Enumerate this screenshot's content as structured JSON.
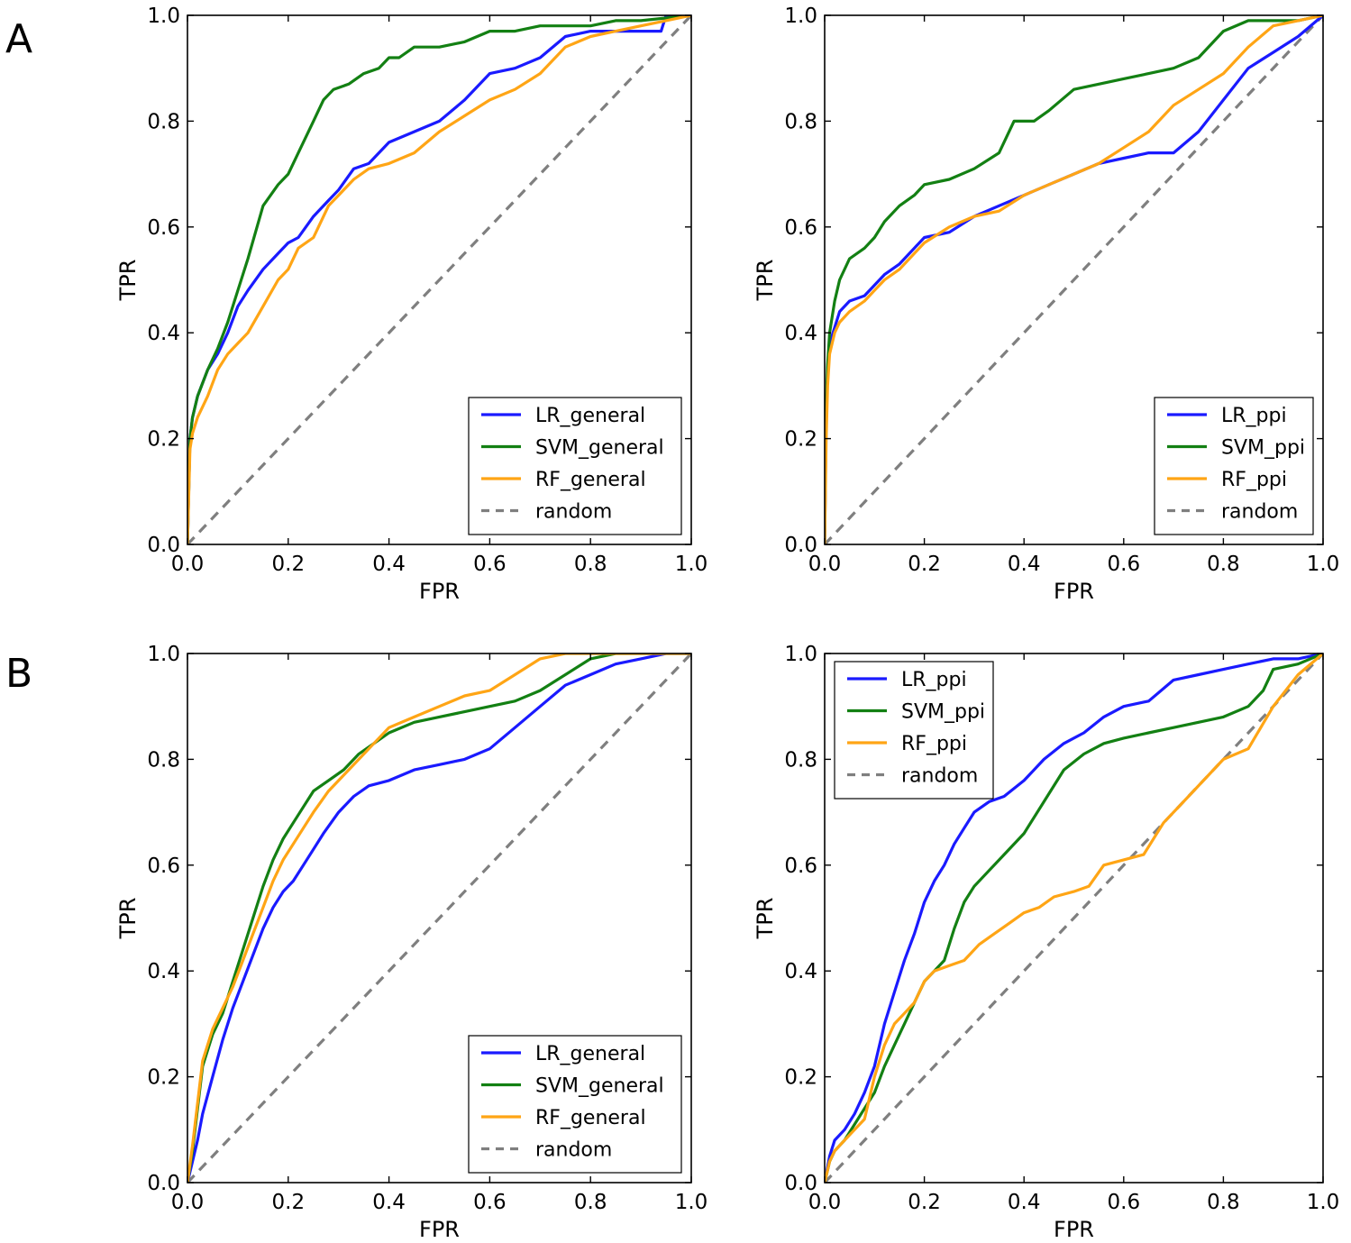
{
  "panel_labels": [
    "A",
    "B"
  ],
  "colors": {
    "lr": "#1a1aff",
    "svm": "#138013",
    "rf": "#ffa515",
    "random": "#7f7f7f",
    "frame": "#000000"
  },
  "chart_data": [
    {
      "type": "line",
      "panel": "A",
      "position": "top-left",
      "title": "",
      "xlabel": "FPR",
      "ylabel": "TPR",
      "xlim": [
        0,
        1
      ],
      "ylim": [
        0,
        1
      ],
      "xticks": [
        "0.0",
        "0.2",
        "0.4",
        "0.6",
        "0.8",
        "1.0"
      ],
      "yticks": [
        "0.0",
        "0.2",
        "0.4",
        "0.6",
        "0.8",
        "1.0"
      ],
      "legend_loc": "lower-right",
      "series": [
        {
          "name": "LR_general",
          "key": "lr",
          "x": [
            0,
            0.005,
            0.01,
            0.02,
            0.04,
            0.06,
            0.08,
            0.1,
            0.12,
            0.15,
            0.18,
            0.2,
            0.22,
            0.25,
            0.28,
            0.3,
            0.33,
            0.36,
            0.4,
            0.45,
            0.5,
            0.55,
            0.6,
            0.65,
            0.7,
            0.75,
            0.8,
            0.85,
            0.9,
            0.94,
            0.95,
            1.0
          ],
          "y": [
            0,
            0.2,
            0.24,
            0.28,
            0.33,
            0.36,
            0.4,
            0.45,
            0.48,
            0.52,
            0.55,
            0.57,
            0.58,
            0.62,
            0.65,
            0.67,
            0.71,
            0.72,
            0.76,
            0.78,
            0.8,
            0.84,
            0.89,
            0.9,
            0.92,
            0.96,
            0.97,
            0.97,
            0.97,
            0.97,
            1.0,
            1.0
          ]
        },
        {
          "name": "SVM_general",
          "key": "svm",
          "x": [
            0,
            0.005,
            0.01,
            0.02,
            0.04,
            0.06,
            0.08,
            0.1,
            0.12,
            0.15,
            0.18,
            0.2,
            0.22,
            0.25,
            0.27,
            0.29,
            0.32,
            0.35,
            0.38,
            0.4,
            0.42,
            0.45,
            0.5,
            0.55,
            0.6,
            0.65,
            0.7,
            0.75,
            0.8,
            0.85,
            0.9,
            1.0
          ],
          "y": [
            0,
            0.2,
            0.24,
            0.28,
            0.33,
            0.37,
            0.42,
            0.48,
            0.54,
            0.64,
            0.68,
            0.7,
            0.74,
            0.8,
            0.84,
            0.86,
            0.87,
            0.89,
            0.9,
            0.92,
            0.92,
            0.94,
            0.94,
            0.95,
            0.97,
            0.97,
            0.98,
            0.98,
            0.98,
            0.99,
            0.99,
            1.0
          ]
        },
        {
          "name": "RF_general",
          "key": "rf",
          "x": [
            0,
            0.005,
            0.01,
            0.02,
            0.04,
            0.06,
            0.08,
            0.1,
            0.12,
            0.15,
            0.18,
            0.2,
            0.22,
            0.25,
            0.28,
            0.3,
            0.33,
            0.36,
            0.4,
            0.45,
            0.5,
            0.55,
            0.6,
            0.65,
            0.7,
            0.75,
            0.8,
            0.85,
            0.9,
            0.95,
            1.0
          ],
          "y": [
            0,
            0.18,
            0.21,
            0.24,
            0.28,
            0.33,
            0.36,
            0.38,
            0.4,
            0.45,
            0.5,
            0.52,
            0.56,
            0.58,
            0.64,
            0.66,
            0.69,
            0.71,
            0.72,
            0.74,
            0.78,
            0.81,
            0.84,
            0.86,
            0.89,
            0.94,
            0.96,
            0.97,
            0.98,
            0.99,
            1.0
          ]
        },
        {
          "name": "random",
          "key": "random",
          "dashed": true,
          "x": [
            0,
            1
          ],
          "y": [
            0,
            1
          ]
        }
      ]
    },
    {
      "type": "line",
      "panel": "A",
      "position": "top-right",
      "title": "",
      "xlabel": "FPR",
      "ylabel": "TPR",
      "xlim": [
        0,
        1
      ],
      "ylim": [
        0,
        1
      ],
      "xticks": [
        "0.0",
        "0.2",
        "0.4",
        "0.6",
        "0.8",
        "1.0"
      ],
      "yticks": [
        "0.0",
        "0.2",
        "0.4",
        "0.6",
        "0.8",
        "1.0"
      ],
      "legend_loc": "lower-right",
      "series": [
        {
          "name": "LR_ppi",
          "key": "lr",
          "x": [
            0,
            0.003,
            0.006,
            0.01,
            0.02,
            0.03,
            0.05,
            0.08,
            0.1,
            0.12,
            0.15,
            0.18,
            0.2,
            0.25,
            0.3,
            0.35,
            0.4,
            0.45,
            0.5,
            0.55,
            0.6,
            0.65,
            0.7,
            0.75,
            0.8,
            0.85,
            0.9,
            0.95,
            1.0
          ],
          "y": [
            0,
            0.25,
            0.32,
            0.38,
            0.41,
            0.44,
            0.46,
            0.47,
            0.49,
            0.51,
            0.53,
            0.56,
            0.58,
            0.59,
            0.62,
            0.64,
            0.66,
            0.68,
            0.7,
            0.72,
            0.73,
            0.74,
            0.74,
            0.78,
            0.84,
            0.9,
            0.93,
            0.96,
            1.0
          ]
        },
        {
          "name": "SVM_ppi",
          "key": "svm",
          "x": [
            0,
            0.003,
            0.006,
            0.01,
            0.02,
            0.03,
            0.05,
            0.08,
            0.1,
            0.12,
            0.15,
            0.18,
            0.2,
            0.25,
            0.3,
            0.35,
            0.38,
            0.42,
            0.45,
            0.5,
            0.55,
            0.6,
            0.65,
            0.7,
            0.75,
            0.8,
            0.85,
            0.9,
            0.95,
            1.0
          ],
          "y": [
            0,
            0.26,
            0.34,
            0.4,
            0.46,
            0.5,
            0.54,
            0.56,
            0.58,
            0.61,
            0.64,
            0.66,
            0.68,
            0.69,
            0.71,
            0.74,
            0.8,
            0.8,
            0.82,
            0.86,
            0.87,
            0.88,
            0.89,
            0.9,
            0.92,
            0.97,
            0.99,
            0.99,
            0.99,
            1.0
          ]
        },
        {
          "name": "RF_ppi",
          "key": "rf",
          "x": [
            0,
            0.003,
            0.006,
            0.01,
            0.02,
            0.03,
            0.05,
            0.08,
            0.1,
            0.12,
            0.15,
            0.18,
            0.2,
            0.25,
            0.3,
            0.35,
            0.4,
            0.45,
            0.5,
            0.55,
            0.6,
            0.65,
            0.7,
            0.75,
            0.8,
            0.85,
            0.9,
            0.95,
            1.0
          ],
          "y": [
            0,
            0.2,
            0.3,
            0.36,
            0.4,
            0.42,
            0.44,
            0.46,
            0.48,
            0.5,
            0.52,
            0.55,
            0.57,
            0.6,
            0.62,
            0.63,
            0.66,
            0.68,
            0.7,
            0.72,
            0.75,
            0.78,
            0.83,
            0.86,
            0.89,
            0.94,
            0.98,
            0.99,
            1.0
          ]
        },
        {
          "name": "random",
          "key": "random",
          "dashed": true,
          "x": [
            0,
            1
          ],
          "y": [
            0,
            1
          ]
        }
      ]
    },
    {
      "type": "line",
      "panel": "B",
      "position": "bottom-left",
      "title": "",
      "xlabel": "FPR",
      "ylabel": "TPR",
      "xlim": [
        0,
        1
      ],
      "ylim": [
        0,
        1
      ],
      "xticks": [
        "0.0",
        "0.2",
        "0.4",
        "0.6",
        "0.8",
        "1.0"
      ],
      "yticks": [
        "0.0",
        "0.2",
        "0.4",
        "0.6",
        "0.8",
        "1.0"
      ],
      "legend_loc": "lower-right",
      "series": [
        {
          "name": "LR_general",
          "key": "lr",
          "x": [
            0,
            0.01,
            0.02,
            0.03,
            0.05,
            0.07,
            0.09,
            0.11,
            0.13,
            0.15,
            0.17,
            0.19,
            0.21,
            0.23,
            0.25,
            0.27,
            0.3,
            0.33,
            0.36,
            0.4,
            0.45,
            0.5,
            0.55,
            0.6,
            0.65,
            0.7,
            0.75,
            0.8,
            0.85,
            0.9,
            0.95,
            1.0
          ],
          "y": [
            0,
            0.04,
            0.08,
            0.13,
            0.2,
            0.27,
            0.33,
            0.38,
            0.43,
            0.48,
            0.52,
            0.55,
            0.57,
            0.6,
            0.63,
            0.66,
            0.7,
            0.73,
            0.75,
            0.76,
            0.78,
            0.79,
            0.8,
            0.82,
            0.86,
            0.9,
            0.94,
            0.96,
            0.98,
            0.99,
            1.0,
            1.0
          ]
        },
        {
          "name": "SVM_general",
          "key": "svm",
          "x": [
            0,
            0.01,
            0.02,
            0.03,
            0.05,
            0.07,
            0.09,
            0.11,
            0.13,
            0.15,
            0.17,
            0.19,
            0.21,
            0.23,
            0.25,
            0.28,
            0.31,
            0.34,
            0.37,
            0.4,
            0.45,
            0.5,
            0.55,
            0.6,
            0.65,
            0.7,
            0.75,
            0.8,
            0.85,
            0.9,
            1.0
          ],
          "y": [
            0,
            0.06,
            0.14,
            0.22,
            0.28,
            0.32,
            0.38,
            0.44,
            0.5,
            0.56,
            0.61,
            0.65,
            0.68,
            0.71,
            0.74,
            0.76,
            0.78,
            0.81,
            0.83,
            0.85,
            0.87,
            0.88,
            0.89,
            0.9,
            0.91,
            0.93,
            0.96,
            0.99,
            1.0,
            1.0,
            1.0
          ]
        },
        {
          "name": "RF_general",
          "key": "rf",
          "x": [
            0,
            0.01,
            0.02,
            0.03,
            0.05,
            0.07,
            0.09,
            0.11,
            0.13,
            0.15,
            0.17,
            0.19,
            0.21,
            0.23,
            0.25,
            0.28,
            0.31,
            0.34,
            0.37,
            0.4,
            0.45,
            0.5,
            0.55,
            0.6,
            0.65,
            0.7,
            0.75,
            0.8,
            1.0
          ],
          "y": [
            0,
            0.07,
            0.15,
            0.23,
            0.29,
            0.33,
            0.37,
            0.42,
            0.47,
            0.52,
            0.57,
            0.61,
            0.64,
            0.67,
            0.7,
            0.74,
            0.77,
            0.8,
            0.83,
            0.86,
            0.88,
            0.9,
            0.92,
            0.93,
            0.96,
            0.99,
            1.0,
            1.0,
            1.0
          ]
        },
        {
          "name": "random",
          "key": "random",
          "dashed": true,
          "x": [
            0,
            1
          ],
          "y": [
            0,
            1
          ]
        }
      ]
    },
    {
      "type": "line",
      "panel": "B",
      "position": "bottom-right",
      "title": "",
      "xlabel": "FPR",
      "ylabel": "TPR",
      "xlim": [
        0,
        1
      ],
      "ylim": [
        0,
        1
      ],
      "xticks": [
        "0.0",
        "0.2",
        "0.4",
        "0.6",
        "0.8",
        "1.0"
      ],
      "yticks": [
        "0.0",
        "0.2",
        "0.4",
        "0.6",
        "0.8",
        "1.0"
      ],
      "legend_loc": "upper-left",
      "series": [
        {
          "name": "LR_ppi",
          "key": "lr",
          "x": [
            0,
            0.01,
            0.02,
            0.04,
            0.06,
            0.08,
            0.1,
            0.12,
            0.14,
            0.16,
            0.18,
            0.2,
            0.22,
            0.24,
            0.26,
            0.28,
            0.3,
            0.33,
            0.36,
            0.4,
            0.44,
            0.48,
            0.52,
            0.56,
            0.6,
            0.65,
            0.7,
            0.75,
            0.8,
            0.85,
            0.9,
            0.95,
            1.0
          ],
          "y": [
            0,
            0.05,
            0.08,
            0.1,
            0.13,
            0.17,
            0.22,
            0.3,
            0.36,
            0.42,
            0.47,
            0.53,
            0.57,
            0.6,
            0.64,
            0.67,
            0.7,
            0.72,
            0.73,
            0.76,
            0.8,
            0.83,
            0.85,
            0.88,
            0.9,
            0.91,
            0.95,
            0.96,
            0.97,
            0.98,
            0.99,
            0.99,
            1.0
          ]
        },
        {
          "name": "SVM_ppi",
          "key": "svm",
          "x": [
            0,
            0.01,
            0.02,
            0.04,
            0.06,
            0.08,
            0.1,
            0.12,
            0.14,
            0.16,
            0.18,
            0.2,
            0.22,
            0.24,
            0.26,
            0.28,
            0.3,
            0.33,
            0.36,
            0.4,
            0.44,
            0.48,
            0.52,
            0.56,
            0.6,
            0.65,
            0.7,
            0.75,
            0.8,
            0.85,
            0.88,
            0.9,
            0.95,
            1.0
          ],
          "y": [
            0,
            0.04,
            0.06,
            0.08,
            0.11,
            0.14,
            0.17,
            0.22,
            0.26,
            0.3,
            0.34,
            0.38,
            0.4,
            0.42,
            0.48,
            0.53,
            0.56,
            0.59,
            0.62,
            0.66,
            0.72,
            0.78,
            0.81,
            0.83,
            0.84,
            0.85,
            0.86,
            0.87,
            0.88,
            0.9,
            0.93,
            0.97,
            0.98,
            1.0
          ]
        },
        {
          "name": "RF_ppi",
          "key": "rf",
          "x": [
            0,
            0.01,
            0.02,
            0.04,
            0.06,
            0.08,
            0.1,
            0.12,
            0.14,
            0.16,
            0.18,
            0.2,
            0.22,
            0.25,
            0.28,
            0.31,
            0.34,
            0.37,
            0.4,
            0.43,
            0.46,
            0.5,
            0.53,
            0.56,
            0.6,
            0.64,
            0.68,
            0.72,
            0.76,
            0.8,
            0.85,
            0.9,
            0.95,
            1.0
          ],
          "y": [
            0,
            0.04,
            0.06,
            0.08,
            0.1,
            0.12,
            0.2,
            0.26,
            0.3,
            0.32,
            0.34,
            0.38,
            0.4,
            0.41,
            0.42,
            0.45,
            0.47,
            0.49,
            0.51,
            0.52,
            0.54,
            0.55,
            0.56,
            0.6,
            0.61,
            0.62,
            0.68,
            0.72,
            0.76,
            0.8,
            0.82,
            0.9,
            0.96,
            1.0
          ]
        },
        {
          "name": "random",
          "key": "random",
          "dashed": true,
          "x": [
            0,
            1
          ],
          "y": [
            0,
            1
          ]
        }
      ]
    }
  ]
}
